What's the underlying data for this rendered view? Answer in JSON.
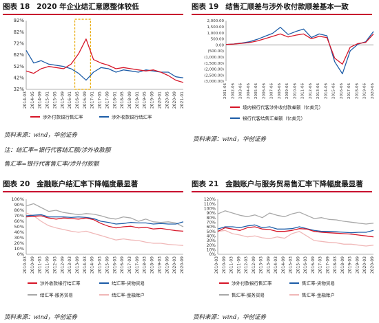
{
  "figures": [
    {
      "id": "p18",
      "num": "图表 18",
      "title": "2020 年企业结汇意愿整体较低",
      "source": "资料来源：wind，华创证券"
    },
    {
      "id": "p19",
      "num": "图表 19",
      "title": "结售汇顺差与涉外收付款顺差基本一致",
      "source": "资料来源：wind，华创证券"
    },
    {
      "id": "p20",
      "num": "图表 20",
      "title": "金融账户结汇率下降幅度最显著",
      "source": "资料来源：wind，华创证券"
    },
    {
      "id": "p21",
      "num": "图表 21",
      "title": "金融账户与服务贸易售汇率下降幅度最显著",
      "source": "资料来源：wind，华创证券"
    }
  ],
  "notes": {
    "line1": "注：结汇率=银行代客结汇额/涉外收款额",
    "line2": "售汇率=银行代客售汇率/涉外付款额"
  },
  "chart_data": [
    {
      "id": "p18",
      "type": "line",
      "ylim": [
        32,
        92
      ],
      "yticks": [
        "32%",
        "42%",
        "52%",
        "62%",
        "72%",
        "82%",
        "92%"
      ],
      "x": [
        "2014-03",
        "2014-05",
        "2014-09",
        "2015-01",
        "2015-05",
        "2015-09",
        "2016-01",
        "2016-05",
        "2016-09",
        "2017-01",
        "2017-05",
        "2017-09",
        "2018-01",
        "2018-05",
        "2018-09",
        "2019-01",
        "2019-05",
        "2019-09",
        "2020-01",
        "2020-05",
        "2020-09",
        "2021-01"
      ],
      "series": [
        {
          "name": "涉外付款银行售汇率",
          "color": "#d7182a",
          "values": [
            48,
            46,
            50,
            52,
            51,
            50,
            54,
            63,
            76,
            58,
            55,
            53,
            50,
            51,
            50,
            49,
            48,
            49,
            47,
            44,
            40,
            38
          ]
        },
        {
          "name": "涉外收款银行结汇率",
          "color": "#1f5ea8",
          "values": [
            66,
            55,
            57,
            54,
            53,
            52,
            50,
            46,
            40,
            47,
            51,
            50,
            47,
            49,
            48,
            47,
            49,
            48,
            47,
            47,
            43,
            42
          ]
        }
      ],
      "highlight_colors": [
        "#e8a800"
      ],
      "legend_pos": "bottom"
    },
    {
      "id": "p19",
      "type": "line",
      "ylim": [
        -3000,
        2000
      ],
      "yticks": [
        "(3,000.00)",
        "(2,500.00)",
        "(2,000.00)",
        "(1,500.00)",
        "(1,000.00)",
        "(500.00)",
        "0.00",
        "500.00",
        "1,000.00",
        "1,500.00",
        "2,000.00"
      ],
      "x": [
        "2001-06",
        "2002-06",
        "2003-06",
        "2004-06",
        "2005-06",
        "2006-06",
        "2007-06",
        "2008-06",
        "2009-06",
        "2010-06",
        "2011-06",
        "2012-06",
        "2013-06",
        "2014-06",
        "2015-06",
        "2016-06",
        "2017-06",
        "2018-06",
        "2019-06",
        "2020-06"
      ],
      "series": [
        {
          "name": "境内银行代客涉外收付款差额（亿美元）",
          "color": "#d7182a",
          "values": [
            30,
            60,
            120,
            180,
            320,
            500,
            700,
            900,
            650,
            800,
            900,
            500,
            700,
            600,
            -1100,
            -1600,
            -200,
            100,
            200,
            900
          ]
        },
        {
          "name": "银行代客结售汇差额（亿美元）",
          "color": "#1f5ea8",
          "values": [
            20,
            70,
            150,
            250,
            450,
            700,
            950,
            1450,
            850,
            1100,
            1300,
            600,
            900,
            750,
            -1400,
            -2400,
            -500,
            50,
            250,
            1100
          ]
        }
      ],
      "legend_pos": "bottom"
    },
    {
      "id": "p20",
      "type": "line",
      "ylim": [
        0,
        100
      ],
      "yticks": [
        "0%",
        "10%",
        "20%",
        "30%",
        "40%",
        "50%",
        "60%",
        "70%",
        "80%",
        "90%",
        "100%"
      ],
      "x": [
        "2010-03",
        "2010-09",
        "2011-03",
        "2011-09",
        "2012-03",
        "2012-09",
        "2013-03",
        "2013-09",
        "2014-03",
        "2014-09",
        "2015-03",
        "2015-09",
        "2016-03",
        "2016-09",
        "2017-03",
        "2017-09",
        "2018-03",
        "2018-09",
        "2019-03",
        "2019-09",
        "2020-03",
        "2020-09"
      ],
      "series": [
        {
          "name": "涉外收款银行结汇率",
          "color": "#d7182a",
          "values": [
            68,
            69,
            70,
            66,
            64,
            66,
            65,
            64,
            66,
            63,
            56,
            51,
            48,
            50,
            51,
            48,
            49,
            46,
            47,
            45,
            43,
            42
          ]
        },
        {
          "name": "结汇率-货物贸易",
          "color": "#1f5ea8",
          "values": [
            70,
            71,
            72,
            68,
            68,
            68,
            67,
            68,
            67,
            65,
            60,
            58,
            55,
            56,
            58,
            57,
            57,
            55,
            56,
            55,
            55,
            59
          ]
        },
        {
          "name": "结汇率-服务贸易",
          "color": "#a8a8a8",
          "values": [
            88,
            92,
            85,
            78,
            80,
            76,
            74,
            72,
            74,
            73,
            70,
            66,
            64,
            68,
            66,
            60,
            64,
            59,
            58,
            59,
            57,
            50
          ]
        },
        {
          "name": "结汇率-金融账户",
          "color": "#f0b8b8",
          "values": [
            75,
            70,
            60,
            52,
            48,
            45,
            42,
            40,
            42,
            38,
            34,
            30,
            26,
            28,
            26,
            25,
            22,
            20,
            20,
            18,
            17,
            16
          ]
        }
      ],
      "legend_pos": "bottom"
    },
    {
      "id": "p21",
      "type": "line",
      "ylim": [
        0,
        120
      ],
      "yticks": [
        "0%",
        "10%",
        "20%",
        "30%",
        "40%",
        "50%",
        "60%",
        "70%",
        "80%",
        "90%",
        "100%",
        "110%",
        "120%"
      ],
      "x": [
        "2010-03",
        "2010-09",
        "2011-03",
        "2011-09",
        "2012-03",
        "2012-09",
        "2013-03",
        "2013-09",
        "2014-03",
        "2014-09",
        "2015-03",
        "2015-09",
        "2016-03",
        "2016-09",
        "2017-03",
        "2017-09",
        "2018-03",
        "2018-09",
        "2019-03",
        "2019-09",
        "2020-03",
        "2020-09"
      ],
      "series": [
        {
          "name": "涉外付款银行售汇率",
          "color": "#d7182a",
          "values": [
            50,
            58,
            55,
            52,
            58,
            60,
            55,
            54,
            50,
            50,
            52,
            56,
            55,
            50,
            48,
            47,
            46,
            45,
            44,
            42,
            40,
            38
          ]
        },
        {
          "name": "售汇率-货物贸易",
          "color": "#1f5ea8",
          "values": [
            55,
            60,
            60,
            58,
            62,
            64,
            58,
            60,
            55,
            55,
            56,
            60,
            56,
            52,
            50,
            50,
            49,
            48,
            47,
            48,
            48,
            52
          ]
        },
        {
          "name": "售汇率-服务贸易",
          "color": "#a8a8a8",
          "values": [
            88,
            95,
            90,
            85,
            82,
            86,
            80,
            90,
            85,
            82,
            88,
            92,
            85,
            78,
            80,
            76,
            75,
            72,
            70,
            68,
            66,
            68
          ]
        },
        {
          "name": "售汇率-金融账户",
          "color": "#f0b8b8",
          "values": [
            50,
            52,
            45,
            42,
            38,
            40,
            36,
            34,
            38,
            35,
            45,
            50,
            40,
            30,
            28,
            26,
            25,
            22,
            22,
            20,
            18,
            20
          ]
        }
      ],
      "legend_pos": "bottom"
    }
  ]
}
